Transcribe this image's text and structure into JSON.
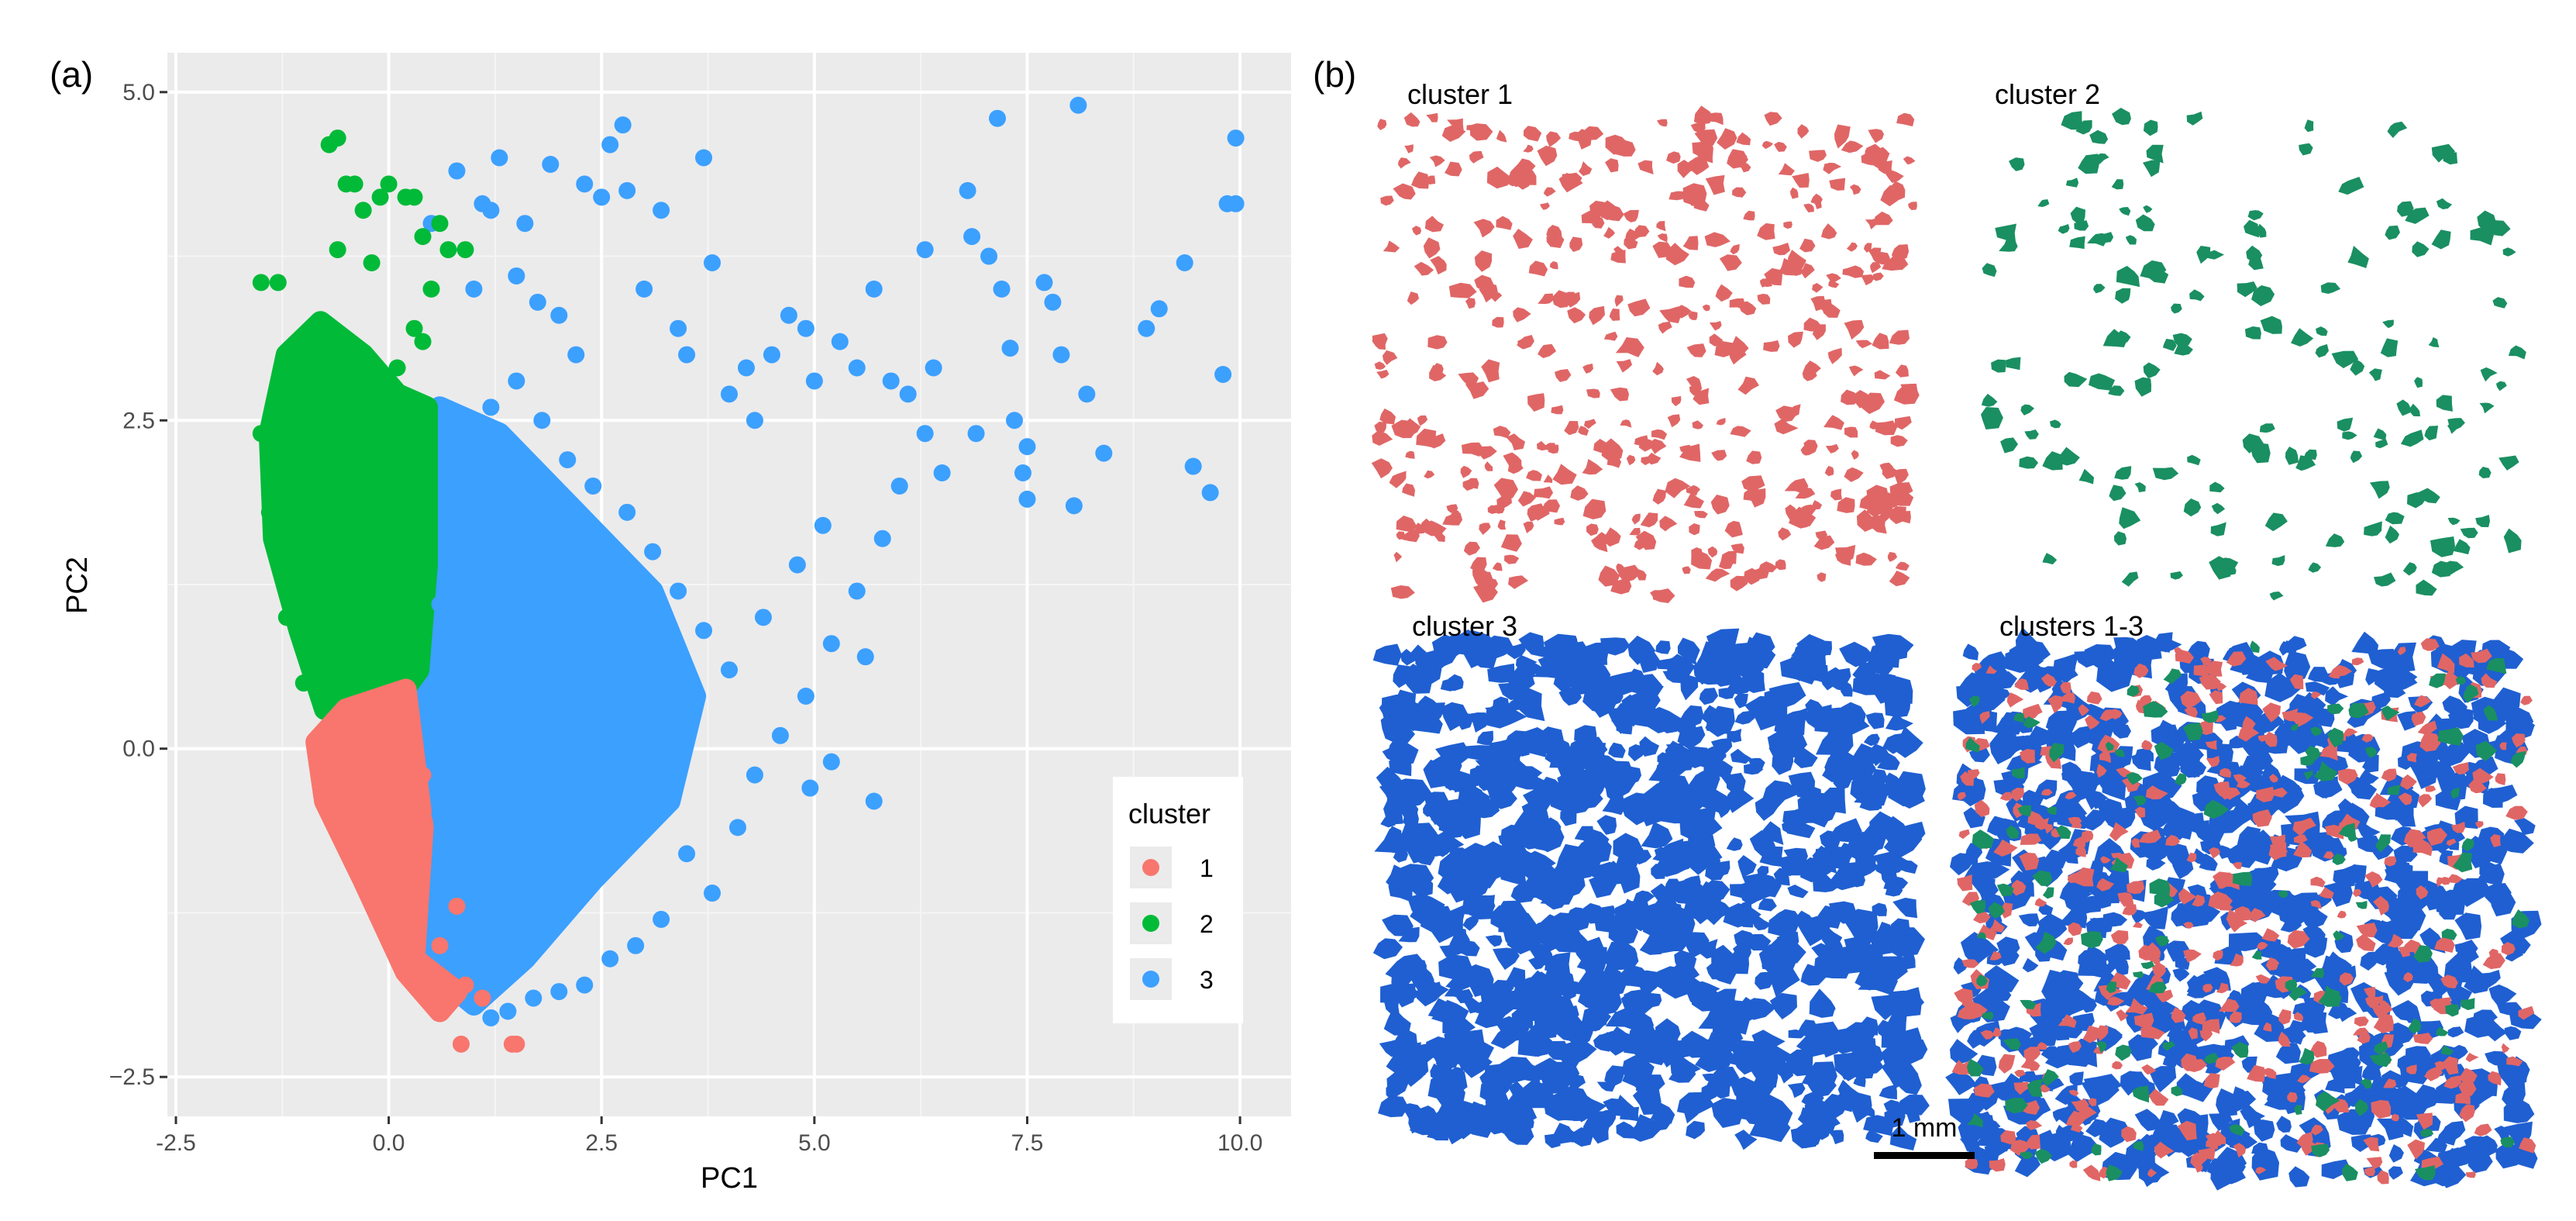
{
  "panels": {
    "a_label": "(a)",
    "b_label": "(b)"
  },
  "chart_data": {
    "type": "scatter",
    "xlabel": "PC1",
    "ylabel": "PC2",
    "xlim": [
      -2.6,
      10.6
    ],
    "ylim": [
      -2.8,
      5.3
    ],
    "x_ticks": [
      -2.5,
      0.0,
      2.5,
      5.0,
      7.5,
      10.0
    ],
    "x_tick_labels": [
      "-2.5",
      "0.0",
      "2.5",
      "5.0",
      "7.5",
      "10.0"
    ],
    "y_ticks": [
      -2.5,
      0.0,
      2.5,
      5.0
    ],
    "y_tick_labels": [
      "−2.5",
      "0.0",
      "2.5",
      "5.0"
    ],
    "grid": true,
    "background": "#ebebeb",
    "legend": {
      "title": "cluster",
      "placement": "bottom-right",
      "entries": [
        "1",
        "2",
        "3"
      ]
    },
    "series": [
      {
        "name": "1",
        "color": "#f8766d",
        "points": [
          [
            -0.3,
            0.2
          ],
          [
            -0.1,
            -0.3
          ],
          [
            0.0,
            -0.8
          ],
          [
            0.2,
            -1.3
          ],
          [
            0.4,
            -1.7
          ],
          [
            0.5,
            -1.9
          ],
          [
            0.7,
            -1.95
          ],
          [
            0.85,
            -2.25
          ],
          [
            1.45,
            -2.25
          ],
          [
            1.5,
            -2.25
          ],
          [
            0.2,
            0.3
          ],
          [
            0.1,
            0.4
          ],
          [
            0.4,
            -0.2
          ],
          [
            0.3,
            -0.6
          ],
          [
            0.6,
            -1.5
          ],
          [
            0.9,
            -1.8
          ],
          [
            -0.5,
            -0.1
          ],
          [
            -0.7,
            0.1
          ],
          [
            1.1,
            -1.9
          ],
          [
            0.8,
            -1.2
          ]
        ]
      },
      {
        "name": "2",
        "color": "#00ba38",
        "points": [
          [
            -1.4,
            1.8
          ],
          [
            -1.2,
            1.0
          ],
          [
            -1.0,
            0.5
          ],
          [
            -0.9,
            2.5
          ],
          [
            -0.8,
            3.2
          ],
          [
            -0.6,
            3.8
          ],
          [
            -0.5,
            4.3
          ],
          [
            -0.7,
            4.6
          ],
          [
            -0.6,
            4.65
          ],
          [
            -0.4,
            4.3
          ],
          [
            -0.3,
            4.1
          ],
          [
            -0.2,
            3.7
          ],
          [
            -0.1,
            4.2
          ],
          [
            0.0,
            4.3
          ],
          [
            0.2,
            4.2
          ],
          [
            0.3,
            4.2
          ],
          [
            0.4,
            3.9
          ],
          [
            0.6,
            4.0
          ],
          [
            0.5,
            3.5
          ],
          [
            0.3,
            3.2
          ],
          [
            0.1,
            2.9
          ],
          [
            -1.5,
            2.4
          ],
          [
            -1.5,
            3.55
          ],
          [
            -1.3,
            3.55
          ],
          [
            0.4,
            3.1
          ],
          [
            0.2,
            1.6
          ],
          [
            0.3,
            0.8
          ],
          [
            0.4,
            1.9
          ],
          [
            0.7,
            3.8
          ],
          [
            0.9,
            3.8
          ]
        ]
      },
      {
        "name": "3",
        "color": "#3ca0ff",
        "points": [
          [
            0.8,
            4.4
          ],
          [
            0.5,
            4.0
          ],
          [
            1.0,
            3.5
          ],
          [
            1.1,
            4.15
          ],
          [
            1.2,
            4.1
          ],
          [
            1.3,
            4.5
          ],
          [
            1.5,
            3.6
          ],
          [
            1.6,
            4.0
          ],
          [
            1.75,
            3.4
          ],
          [
            1.9,
            4.45
          ],
          [
            2.0,
            3.3
          ],
          [
            2.2,
            3.0
          ],
          [
            2.3,
            4.3
          ],
          [
            2.5,
            4.2
          ],
          [
            2.6,
            4.6
          ],
          [
            2.75,
            4.75
          ],
          [
            2.8,
            4.25
          ],
          [
            3.0,
            3.5
          ],
          [
            3.2,
            4.1
          ],
          [
            3.4,
            3.2
          ],
          [
            3.5,
            3.0
          ],
          [
            3.7,
            4.5
          ],
          [
            3.8,
            3.7
          ],
          [
            4.0,
            2.7
          ],
          [
            4.2,
            2.9
          ],
          [
            4.3,
            2.5
          ],
          [
            4.5,
            3.0
          ],
          [
            4.7,
            3.3
          ],
          [
            4.9,
            3.2
          ],
          [
            5.0,
            2.8
          ],
          [
            5.3,
            3.1
          ],
          [
            5.5,
            2.9
          ],
          [
            5.7,
            3.5
          ],
          [
            5.9,
            2.8
          ],
          [
            6.1,
            2.7
          ],
          [
            6.3,
            2.4
          ],
          [
            6.3,
            3.8
          ],
          [
            6.4,
            2.9
          ],
          [
            6.5,
            2.1
          ],
          [
            6.8,
            4.25
          ],
          [
            6.85,
            3.9
          ],
          [
            6.9,
            2.4
          ],
          [
            7.05,
            3.75
          ],
          [
            7.15,
            4.8
          ],
          [
            7.2,
            3.5
          ],
          [
            7.3,
            3.05
          ],
          [
            7.35,
            2.5
          ],
          [
            7.45,
            2.1
          ],
          [
            7.5,
            2.3
          ],
          [
            7.5,
            1.9
          ],
          [
            7.7,
            3.55
          ],
          [
            7.8,
            3.4
          ],
          [
            7.9,
            3.0
          ],
          [
            8.05,
            1.85
          ],
          [
            8.1,
            4.9
          ],
          [
            8.2,
            2.7
          ],
          [
            8.4,
            2.25
          ],
          [
            8.9,
            3.2
          ],
          [
            9.05,
            3.35
          ],
          [
            9.35,
            3.7
          ],
          [
            9.45,
            2.15
          ],
          [
            9.65,
            1.95
          ],
          [
            9.8,
            2.85
          ],
          [
            9.85,
            4.15
          ],
          [
            9.95,
            4.15
          ],
          [
            9.95,
            4.65
          ],
          [
            6.0,
            2.0
          ],
          [
            5.8,
            1.6
          ],
          [
            5.5,
            1.2
          ],
          [
            5.2,
            0.8
          ],
          [
            4.9,
            0.4
          ],
          [
            4.6,
            0.1
          ],
          [
            4.3,
            -0.2
          ],
          [
            4.1,
            -0.6
          ],
          [
            3.8,
            -1.1
          ],
          [
            3.5,
            -0.8
          ],
          [
            3.2,
            -1.3
          ],
          [
            2.9,
            -1.5
          ],
          [
            2.6,
            -1.6
          ],
          [
            2.3,
            -1.8
          ],
          [
            2.0,
            -1.85
          ],
          [
            1.7,
            -1.9
          ],
          [
            1.4,
            -2.0
          ],
          [
            1.2,
            -2.05
          ],
          [
            1.0,
            -1.7
          ],
          [
            0.8,
            -1.3
          ],
          [
            0.6,
            -0.5
          ],
          [
            0.5,
            0.3
          ],
          [
            0.6,
            1.1
          ],
          [
            0.7,
            1.8
          ],
          [
            0.9,
            2.4
          ],
          [
            1.2,
            2.6
          ],
          [
            1.5,
            2.8
          ],
          [
            1.8,
            2.5
          ],
          [
            2.1,
            2.2
          ],
          [
            2.4,
            2.0
          ],
          [
            2.8,
            1.8
          ],
          [
            3.1,
            1.5
          ],
          [
            3.4,
            1.2
          ],
          [
            3.7,
            0.9
          ],
          [
            4.0,
            0.6
          ],
          [
            4.4,
            1.0
          ],
          [
            4.8,
            1.4
          ],
          [
            5.1,
            1.7
          ],
          [
            5.6,
            0.7
          ],
          [
            5.7,
            -0.4
          ],
          [
            5.2,
            -0.1
          ],
          [
            4.95,
            -0.3
          ],
          [
            1.0,
            0.2
          ],
          [
            1.5,
            0.5
          ],
          [
            2.0,
            0.0
          ],
          [
            2.5,
            0.4
          ],
          [
            3.0,
            0.2
          ],
          [
            1.3,
            -0.8
          ],
          [
            1.8,
            -0.5
          ],
          [
            2.3,
            -1.0
          ],
          [
            2.8,
            -0.7
          ],
          [
            3.3,
            -0.3
          ],
          [
            1.1,
            1.2
          ],
          [
            1.6,
            1.5
          ],
          [
            2.1,
            1.3
          ],
          [
            2.6,
            1.0
          ],
          [
            3.1,
            0.8
          ]
        ]
      }
    ]
  },
  "subpanels": [
    {
      "label": "cluster 1",
      "color": "#e06666"
    },
    {
      "label": "cluster 2",
      "color": "#1a8f62"
    },
    {
      "label": "cluster 3",
      "color": "#1f5fd1"
    },
    {
      "label": "clusters 1-3",
      "color": "#1f5fd1"
    }
  ],
  "scale_bar": {
    "label": "1 mm"
  }
}
